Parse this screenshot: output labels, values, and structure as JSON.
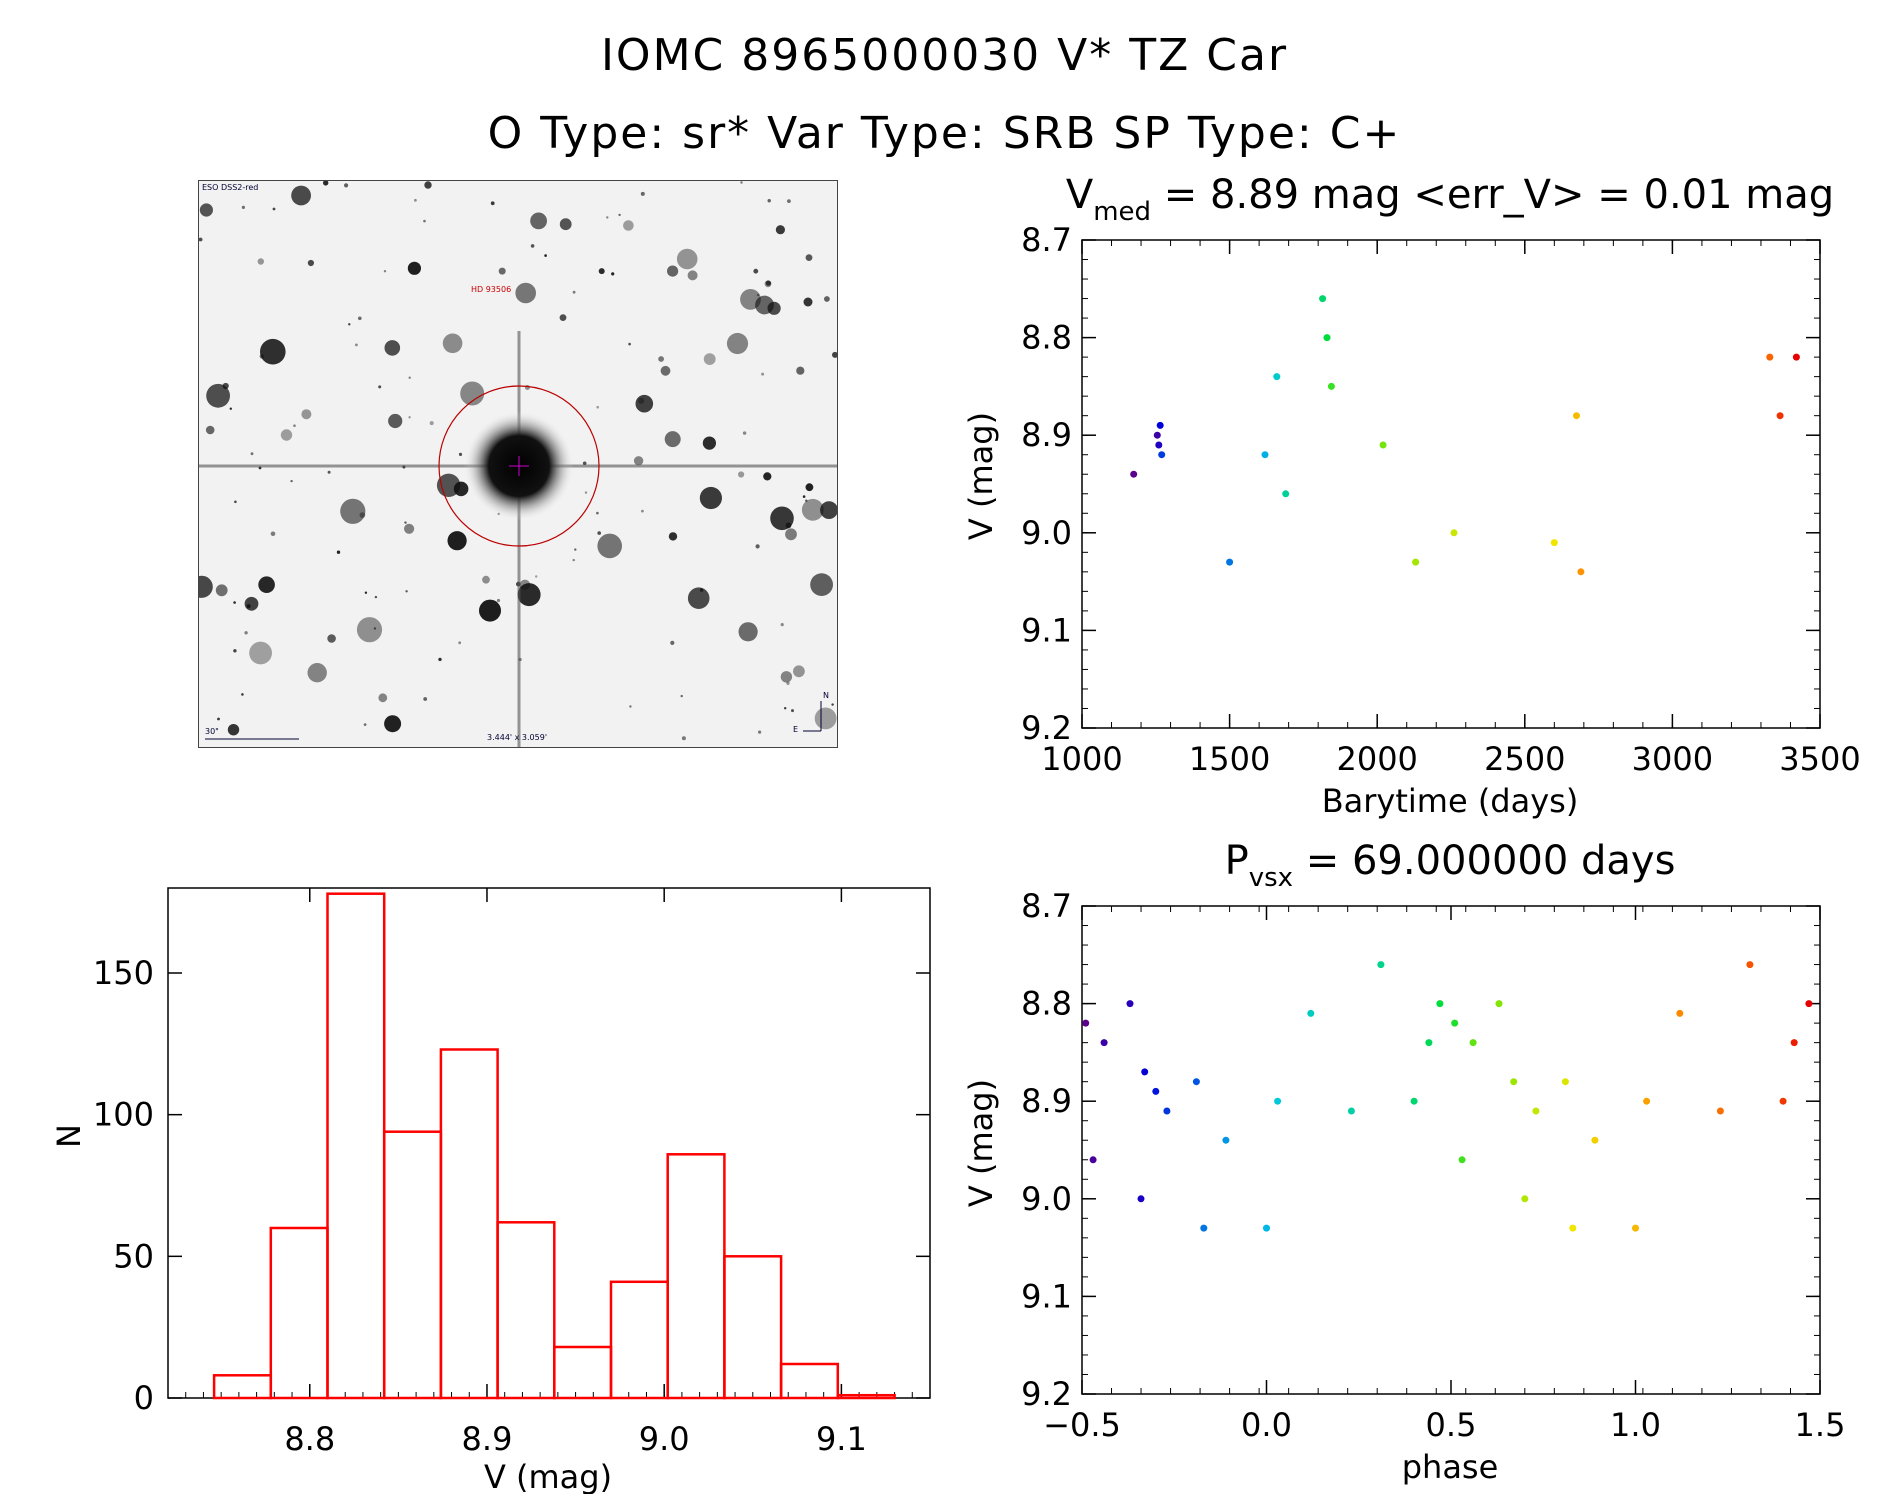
{
  "header": {
    "title_line1": "IOMC 8965000030   V* TZ Car",
    "title_line2": "O Type: sr*  Var Type: SRB  SP Type: C+"
  },
  "finder_chart": {
    "survey_label": "ESO DSS2-red",
    "target_label": "HD 93506",
    "scale_label": "30\"",
    "fov_label": "3.444' x 3.059'",
    "north_label": "N",
    "east_label": "E"
  },
  "chart_data": [
    {
      "id": "light-curve",
      "type": "scatter",
      "title_parts": {
        "v": "V",
        "sub": "med",
        "rest": " = 8.89 mag <err_V> = 0.01 mag"
      },
      "xlabel": "Barytime (days)",
      "ylabel": "V (mag)",
      "xlim": [
        1000,
        3500
      ],
      "ylim": [
        8.7,
        9.2
      ],
      "y_inverted": true,
      "xticks": [
        1000,
        1500,
        2000,
        2500,
        3000,
        3500
      ],
      "yticks": [
        8.7,
        8.8,
        8.9,
        9.0,
        9.1,
        9.2
      ],
      "points": [
        {
          "x": 1175,
          "y": 8.94
        },
        {
          "x": 1255,
          "y": 8.9
        },
        {
          "x": 1260,
          "y": 8.91
        },
        {
          "x": 1265,
          "y": 8.89
        },
        {
          "x": 1270,
          "y": 8.92
        },
        {
          "x": 1500,
          "y": 9.03
        },
        {
          "x": 1620,
          "y": 8.92
        },
        {
          "x": 1660,
          "y": 8.84
        },
        {
          "x": 1690,
          "y": 8.96
        },
        {
          "x": 1815,
          "y": 8.76
        },
        {
          "x": 1830,
          "y": 8.8
        },
        {
          "x": 1845,
          "y": 8.85
        },
        {
          "x": 2020,
          "y": 8.91
        },
        {
          "x": 2130,
          "y": 9.03
        },
        {
          "x": 2260,
          "y": 9.0
        },
        {
          "x": 2600,
          "y": 9.01
        },
        {
          "x": 2675,
          "y": 8.88
        },
        {
          "x": 2690,
          "y": 9.04
        },
        {
          "x": 3330,
          "y": 8.82
        },
        {
          "x": 3365,
          "y": 8.88
        },
        {
          "x": 3420,
          "y": 8.82
        }
      ]
    },
    {
      "id": "phased-curve",
      "type": "scatter",
      "title_parts": {
        "v": "P",
        "sub": "vsx",
        "rest": " = 69.000000 days"
      },
      "xlabel": "phase",
      "ylabel": "V (mag)",
      "xlim": [
        -0.5,
        1.5
      ],
      "ylim": [
        8.7,
        9.2
      ],
      "y_inverted": true,
      "xticks": [
        -0.5,
        0.0,
        0.5,
        1.0,
        1.5
      ],
      "xtick_labels": [
        "−0.5",
        "0.0",
        "0.5",
        "1.0",
        "1.5"
      ],
      "yticks": [
        8.7,
        8.8,
        8.9,
        9.0,
        9.1,
        9.2
      ],
      "points": [
        {
          "x": -0.49,
          "y": 8.82
        },
        {
          "x": -0.47,
          "y": 8.96
        },
        {
          "x": -0.44,
          "y": 8.84
        },
        {
          "x": -0.37,
          "y": 8.8
        },
        {
          "x": -0.34,
          "y": 9.0
        },
        {
          "x": -0.33,
          "y": 8.87
        },
        {
          "x": -0.3,
          "y": 8.89
        },
        {
          "x": -0.27,
          "y": 8.91
        },
        {
          "x": -0.19,
          "y": 8.88
        },
        {
          "x": -0.17,
          "y": 9.03
        },
        {
          "x": -0.11,
          "y": 8.94
        },
        {
          "x": 0.0,
          "y": 9.03
        },
        {
          "x": 0.03,
          "y": 8.9
        },
        {
          "x": 0.12,
          "y": 8.81
        },
        {
          "x": 0.23,
          "y": 8.91
        },
        {
          "x": 0.31,
          "y": 8.76
        },
        {
          "x": 0.4,
          "y": 8.9
        },
        {
          "x": 0.44,
          "y": 8.84
        },
        {
          "x": 0.47,
          "y": 8.8
        },
        {
          "x": 0.51,
          "y": 8.82
        },
        {
          "x": 0.53,
          "y": 8.96
        },
        {
          "x": 0.56,
          "y": 8.84
        },
        {
          "x": 0.63,
          "y": 8.8
        },
        {
          "x": 0.67,
          "y": 8.88
        },
        {
          "x": 0.7,
          "y": 9.0
        },
        {
          "x": 0.73,
          "y": 8.91
        },
        {
          "x": 0.81,
          "y": 8.88
        },
        {
          "x": 0.83,
          "y": 9.03
        },
        {
          "x": 0.89,
          "y": 8.94
        },
        {
          "x": 1.0,
          "y": 9.03
        },
        {
          "x": 1.03,
          "y": 8.9
        },
        {
          "x": 1.12,
          "y": 8.81
        },
        {
          "x": 1.23,
          "y": 8.91
        },
        {
          "x": 1.31,
          "y": 8.76
        },
        {
          "x": 1.4,
          "y": 8.9
        },
        {
          "x": 1.43,
          "y": 8.84
        },
        {
          "x": 1.47,
          "y": 8.8
        }
      ]
    },
    {
      "id": "histogram",
      "type": "bar",
      "xlabel": "V (mag)",
      "ylabel": "N",
      "xlim": [
        8.72,
        9.15
      ],
      "ylim": [
        0,
        180
      ],
      "xticks": [
        8.8,
        8.9,
        9.0,
        9.1
      ],
      "xtick_labels": [
        "8.8",
        "8.9",
        "9.0",
        "9.1"
      ],
      "yticks": [
        0,
        50,
        100,
        150
      ],
      "bin_edges": [
        8.746,
        8.778,
        8.81,
        8.842,
        8.874,
        8.906,
        8.938,
        8.97,
        9.002,
        9.034,
        9.066,
        9.098,
        9.13
      ],
      "values": [
        8,
        60,
        178,
        94,
        123,
        62,
        18,
        41,
        86,
        50,
        12,
        1
      ],
      "bar_color": "#ff0000"
    }
  ]
}
